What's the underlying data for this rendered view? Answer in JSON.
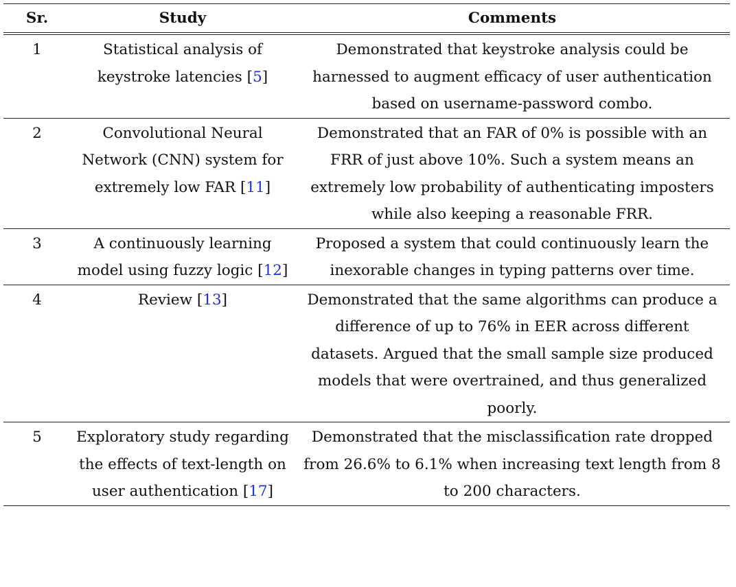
{
  "table": {
    "headers": {
      "sr": "Sr.",
      "study": "Study",
      "comments": "Comments"
    },
    "rows": [
      {
        "sr": "1",
        "study_text": "Statistical analysis of keystroke latencies",
        "study_ref": "5",
        "comments": "Demonstrated that keystroke analysis could be harnessed to augment efficacy of user authentication based on username-password combo."
      },
      {
        "sr": "2",
        "study_text": "Convolutional Neural Network (CNN) system for extremely low FAR",
        "study_ref": "11",
        "comments": "Demonstrated that an FAR of 0% is possible with an FRR of just above 10%. Such a system means an extremely low probability of authenticating imposters while also keeping a reasonable FRR."
      },
      {
        "sr": "3",
        "study_text": "A continuously learning model using fuzzy logic",
        "study_ref": "12",
        "comments": "Proposed a system that could continuously learn the inexorable changes in typing patterns over time."
      },
      {
        "sr": "4",
        "study_text": "Review",
        "study_ref": "13",
        "comments": "Demonstrated that the same algorithms can produce a difference of up to 76% in EER across different datasets. Argued that the small sample size produced models that were overtrained, and thus generalized poorly."
      },
      {
        "sr": "5",
        "study_text": "Exploratory study regarding the effects of text-length on user authentication",
        "study_ref": "17",
        "comments": "Demonstrated that the misclassification rate dropped from 26.6% to 6.1% when increasing text length from 8 to 200 characters."
      }
    ],
    "colors": {
      "citation_link": "#1f33d6",
      "rule": "#222222"
    }
  }
}
